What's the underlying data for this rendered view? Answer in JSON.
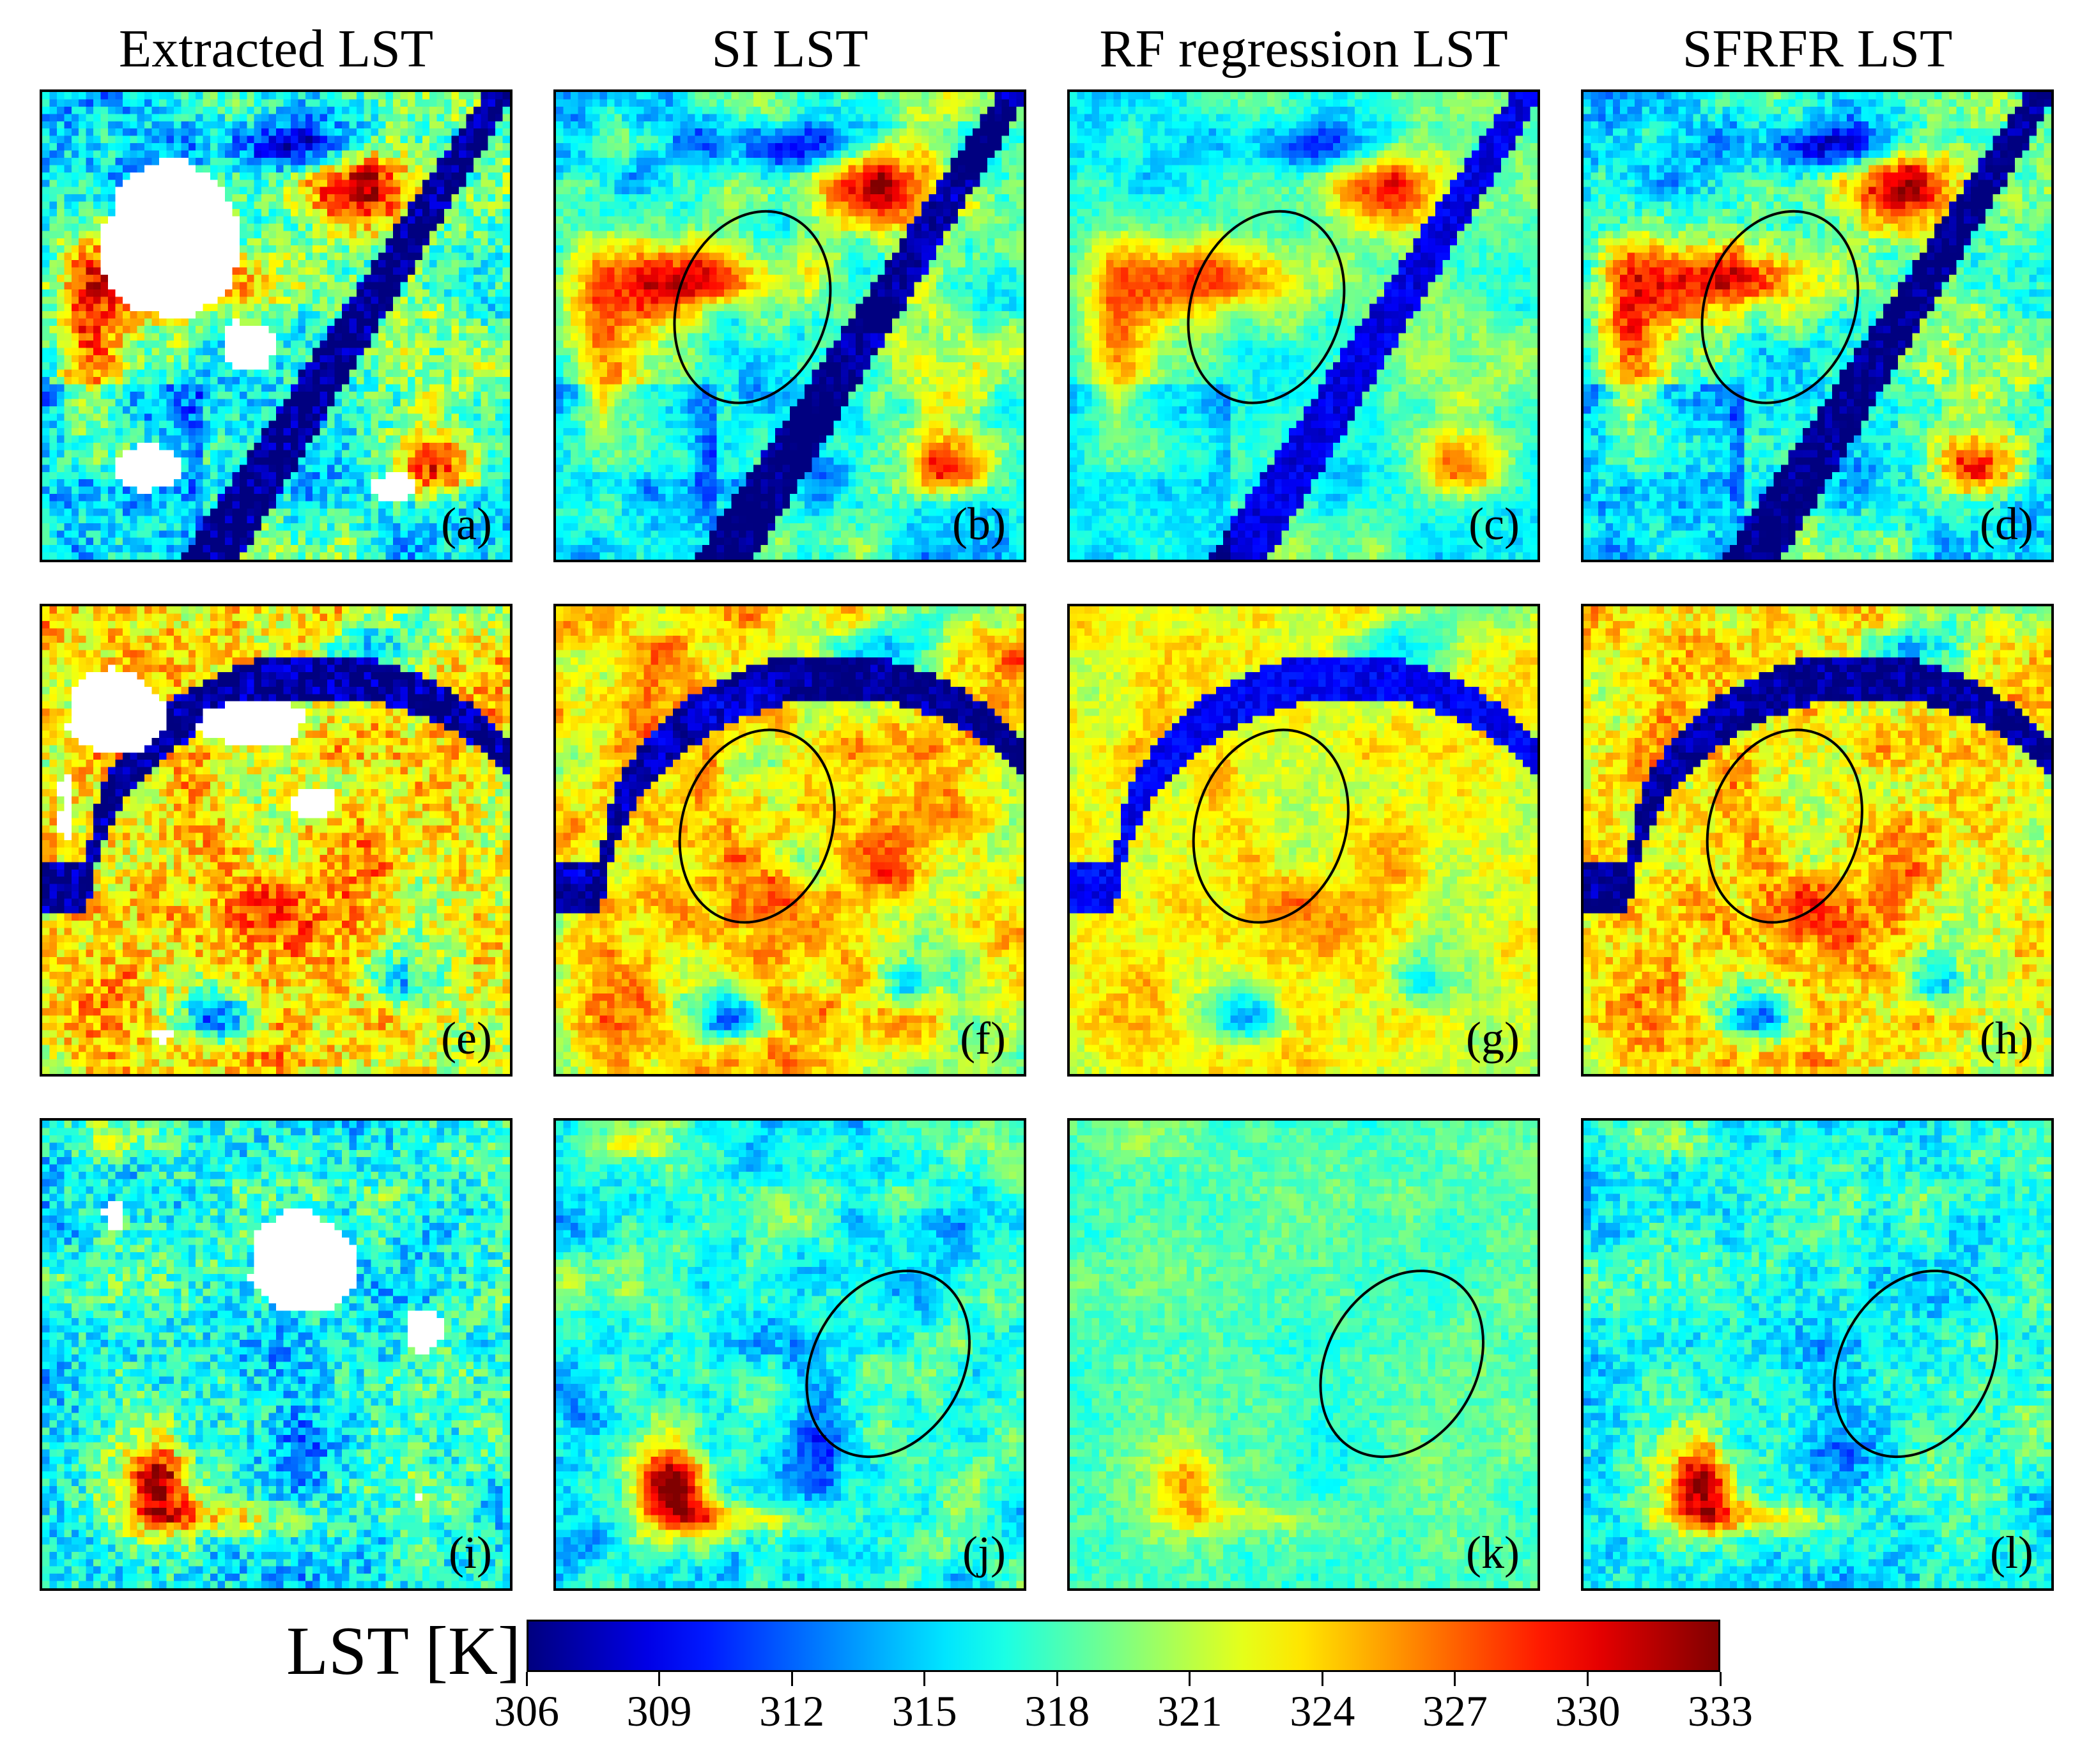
{
  "column_titles": [
    "Extracted LST",
    "SI LST",
    "RF regression LST",
    "SFRFR LST"
  ],
  "panels": [
    {
      "label": "(a)",
      "scene": 0,
      "kind": "extracted",
      "ellipse": false
    },
    {
      "label": "(b)",
      "scene": 0,
      "kind": "si",
      "ellipse": true
    },
    {
      "label": "(c)",
      "scene": 0,
      "kind": "rf",
      "ellipse": true
    },
    {
      "label": "(d)",
      "scene": 0,
      "kind": "sfrfr",
      "ellipse": true
    },
    {
      "label": "(e)",
      "scene": 1,
      "kind": "extracted",
      "ellipse": false
    },
    {
      "label": "(f)",
      "scene": 1,
      "kind": "si",
      "ellipse": true
    },
    {
      "label": "(g)",
      "scene": 1,
      "kind": "rf",
      "ellipse": true
    },
    {
      "label": "(h)",
      "scene": 1,
      "kind": "sfrfr",
      "ellipse": true
    },
    {
      "label": "(i)",
      "scene": 2,
      "kind": "extracted",
      "ellipse": false
    },
    {
      "label": "(j)",
      "scene": 2,
      "kind": "si",
      "ellipse": true
    },
    {
      "label": "(k)",
      "scene": 2,
      "kind": "rf",
      "ellipse": true
    },
    {
      "label": "(l)",
      "scene": 2,
      "kind": "sfrfr",
      "ellipse": true
    }
  ],
  "colorbar": {
    "title": "LST [K]",
    "min": 306,
    "max": 333,
    "ticks": [
      "306",
      "309",
      "312",
      "315",
      "318",
      "321",
      "324",
      "327",
      "330",
      "333"
    ],
    "colormap": "jet",
    "colors": [
      "#0000ff",
      "#0a50ff",
      "#3c96ff",
      "#00e0ff",
      "#78f0c8",
      "#b4f078",
      "#ffff00",
      "#ff9600",
      "#ff3c00",
      "#ff0000"
    ]
  }
}
